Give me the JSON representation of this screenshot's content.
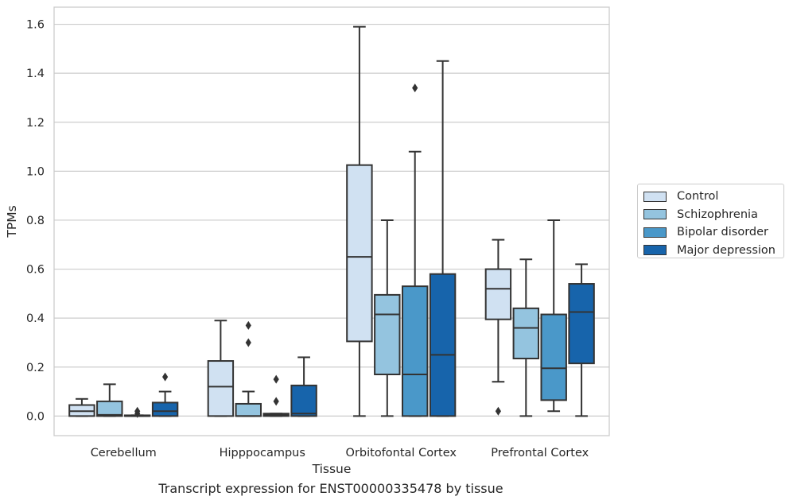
{
  "caption": "Transcript expression for ENST00000335478 by tissue",
  "chart_data": {
    "type": "box",
    "xlabel": "Tissue",
    "ylabel": "TPMs",
    "ylim": [
      -0.08,
      1.67
    ],
    "yticks": [
      "0.0",
      "0.2",
      "0.4",
      "0.6",
      "0.8",
      "1.0",
      "1.2",
      "1.4",
      "1.6"
    ],
    "grid": "horizontal",
    "legend_position": "right",
    "categories": [
      "Cerebellum",
      "Hipppocampus",
      "Orbitofontal Cortex",
      "Prefrontal Cortex"
    ],
    "series": [
      {
        "name": "Control",
        "color": "#d0e1f2",
        "boxes": [
          {
            "whislo": 0,
            "q1": 0,
            "med": 0.02,
            "q3": 0.045,
            "whishi": 0.07,
            "fliers": []
          },
          {
            "whislo": 0,
            "q1": 0,
            "med": 0.12,
            "q3": 0.225,
            "whishi": 0.39,
            "fliers": []
          },
          {
            "whislo": 0,
            "q1": 0.305,
            "med": 0.65,
            "q3": 1.025,
            "whishi": 1.59,
            "fliers": []
          },
          {
            "whislo": 0.14,
            "q1": 0.395,
            "med": 0.52,
            "q3": 0.6,
            "whishi": 0.72,
            "fliers": [
              0.02
            ]
          }
        ]
      },
      {
        "name": "Schizophrenia",
        "color": "#94c4df",
        "boxes": [
          {
            "whislo": 0,
            "q1": 0,
            "med": 0.005,
            "q3": 0.06,
            "whishi": 0.13,
            "fliers": []
          },
          {
            "whislo": 0,
            "q1": 0,
            "med": 0,
            "q3": 0.05,
            "whishi": 0.1,
            "fliers": [
              0.3,
              0.37
            ]
          },
          {
            "whislo": 0,
            "q1": 0.17,
            "med": 0.415,
            "q3": 0.495,
            "whishi": 0.8,
            "fliers": []
          },
          {
            "whislo": 0,
            "q1": 0.235,
            "med": 0.36,
            "q3": 0.44,
            "whishi": 0.64,
            "fliers": []
          }
        ]
      },
      {
        "name": "Bipolar disorder",
        "color": "#4a98c9",
        "boxes": [
          {
            "whislo": 0,
            "q1": 0,
            "med": 0,
            "q3": 0.003,
            "whishi": 0.003,
            "fliers": [
              0.01,
              0.02
            ]
          },
          {
            "whislo": 0,
            "q1": 0,
            "med": 0.005,
            "q3": 0.01,
            "whishi": 0.01,
            "fliers": [
              0.06,
              0.15
            ]
          },
          {
            "whislo": 0,
            "q1": 0,
            "med": 0.17,
            "q3": 0.53,
            "whishi": 1.08,
            "fliers": [
              1.34
            ]
          },
          {
            "whislo": 0.02,
            "q1": 0.065,
            "med": 0.195,
            "q3": 0.415,
            "whishi": 0.8,
            "fliers": []
          }
        ]
      },
      {
        "name": "Major depression",
        "color": "#1764ab",
        "boxes": [
          {
            "whislo": 0,
            "q1": 0,
            "med": 0.02,
            "q3": 0.055,
            "whishi": 0.1,
            "fliers": [
              0.16
            ]
          },
          {
            "whislo": 0,
            "q1": 0,
            "med": 0.01,
            "q3": 0.125,
            "whishi": 0.24,
            "fliers": []
          },
          {
            "whislo": 0,
            "q1": 0,
            "med": 0.25,
            "q3": 0.58,
            "whishi": 1.45,
            "fliers": []
          },
          {
            "whislo": 0,
            "q1": 0.215,
            "med": 0.425,
            "q3": 0.54,
            "whishi": 0.62,
            "fliers": []
          }
        ]
      }
    ]
  }
}
